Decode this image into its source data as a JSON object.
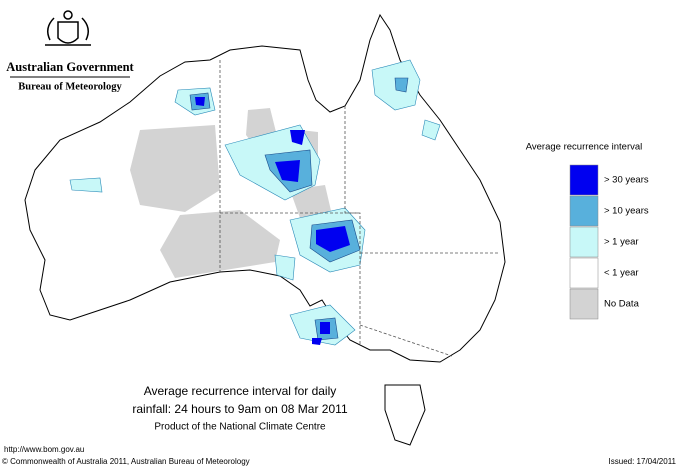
{
  "header": {
    "government": "Australian Government",
    "bureau": "Bureau of Meteorology"
  },
  "legend": {
    "title": "Average recurrence interval",
    "items": [
      {
        "label": "> 30 years",
        "color": "#0000f0"
      },
      {
        "label": "> 10 years",
        "color": "#58b0dc"
      },
      {
        "label": "> 1 year",
        "color": "#c8f8f8"
      },
      {
        "label": "< 1 year",
        "color": "#ffffff"
      },
      {
        "label": "No Data",
        "color": "#d3d3d3"
      }
    ]
  },
  "caption": {
    "line1": "Average recurrence interval for daily",
    "line2": "rainfall: 24 hours to 9am on 08 Mar 2011",
    "line3": "Product of the National Climate Centre"
  },
  "footer": {
    "url": "http://www.bom.gov.au",
    "copyright": "© Commonwealth of Australia 2011, Australian Bureau of Meteorology",
    "issued": "Issued: 17/04/2011"
  }
}
